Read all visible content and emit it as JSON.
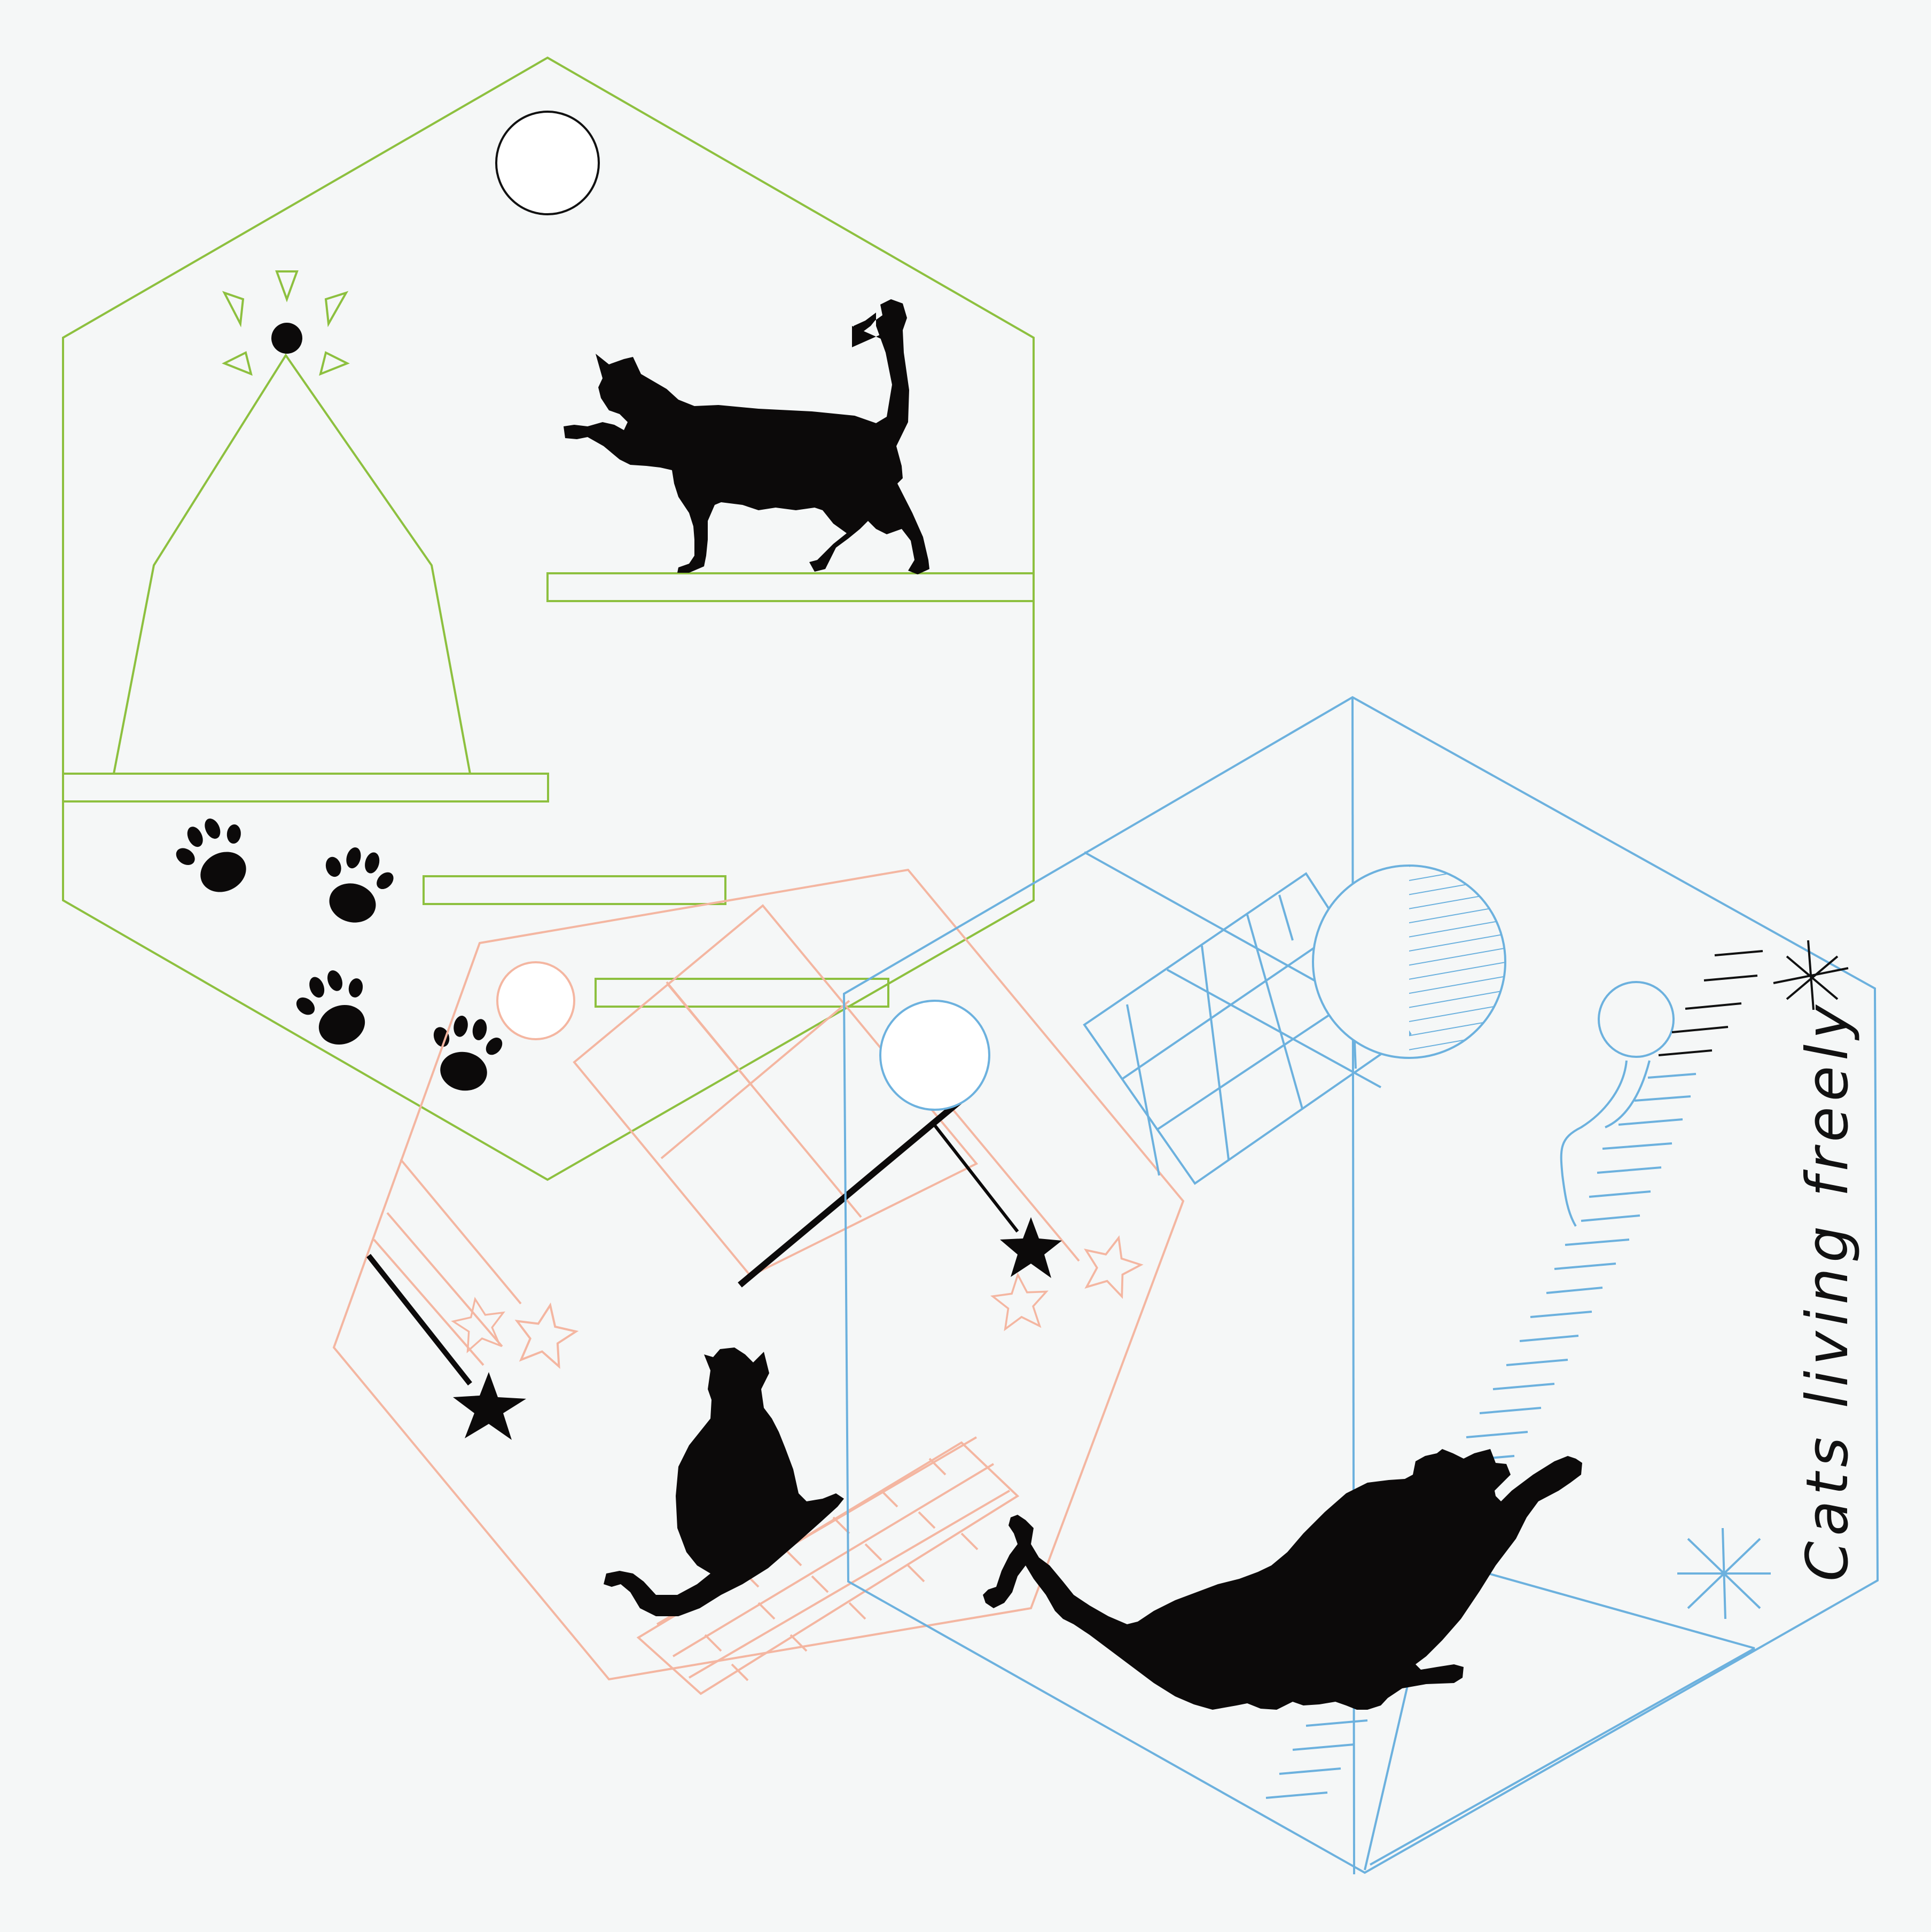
{
  "tagline": "Cats living freely",
  "colors": {
    "background": "#f5f7f7",
    "green_line": "#8dc03f",
    "pink_line": "#f4b6a1",
    "blue_line": "#6cb1de",
    "silhouette": "#0c0a0a",
    "white": "#ffffff"
  },
  "icons": [
    "cat-silhouette-icon",
    "paw-print-icon",
    "star-toy-icon",
    "yarn-ball-icon",
    "sparkle-icon"
  ]
}
